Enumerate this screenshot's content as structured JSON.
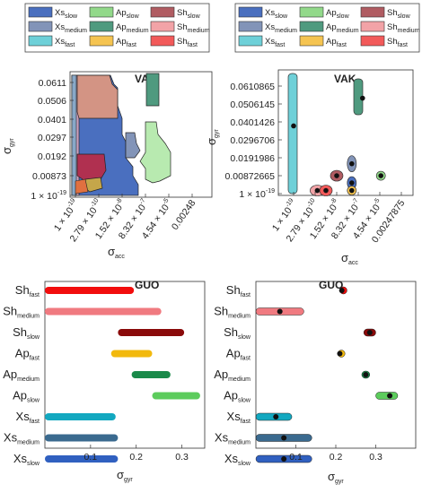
{
  "chart_data": [
    {
      "id": "vak_region",
      "type": "area",
      "title": "VAK",
      "xlabel_main": "σ",
      "xlabel_sub": "acc",
      "ylabel_main": "σ",
      "ylabel_sub": "gyr",
      "x_ticks": [
        "1 × 10^-19",
        "2.79 × 10^-10",
        "1.52 × 10^-8",
        "8.32 × 10^-7",
        "4.54 × 10^-5",
        "0.00248"
      ],
      "y_ticks": [
        "1 × 10^-19",
        "0.00873",
        "0.0192",
        "0.0297",
        "0.0401",
        "0.0506",
        "0.0611"
      ],
      "grid": false,
      "legend_position": "top"
    },
    {
      "id": "vak_points",
      "type": "scatter",
      "title": "VAK",
      "xlabel_main": "σ",
      "xlabel_sub": "acc",
      "ylabel_main": "σ",
      "ylabel_sub": "gyr",
      "x_ticks": [
        "1 × 10^-19",
        "2.79 × 10^-10",
        "1.52 × 10^-8",
        "8.32 × 10^-7",
        "4.54 × 10^-5",
        "0.00247875"
      ],
      "y_ticks": [
        "1 × 10^-19",
        "0.00872665",
        "0.0191986",
        "0.0296706",
        "0.0401426",
        "0.0506145",
        "0.0610865"
      ],
      "grid": false,
      "legend_position": "top",
      "points": [
        {
          "series": "Xs_fast",
          "x_tick_index": 0.0,
          "y": 0.0378
        },
        {
          "series": "Sh_medium",
          "x_tick_index": 1.1,
          "y": 0.0015
        },
        {
          "series": "Sh_fast",
          "x_tick_index": 1.5,
          "y": 0.0015
        },
        {
          "series": "Sh_slow",
          "x_tick_index": 2.0,
          "y": 0.0087
        },
        {
          "series": "Xs_medium",
          "x_tick_index": 2.7,
          "y": 0.0157
        },
        {
          "series": "Xs_slow",
          "x_tick_index": 2.7,
          "y": 0.0052
        },
        {
          "series": "Ap_fast",
          "x_tick_index": 2.7,
          "y": 0.0015
        },
        {
          "series": "Ap_medium",
          "x_tick_index": 3.2,
          "y": 0.054
        },
        {
          "series": "Ap_slow",
          "x_tick_index": 4.05,
          "y": 0.0087
        }
      ]
    },
    {
      "id": "guo_range",
      "type": "bar",
      "title": "GUO",
      "xlabel_main": "σ",
      "xlabel_sub": "gyr",
      "x_ticks": [
        0.1,
        0.2,
        0.3
      ],
      "xlim": [
        0,
        0.35
      ],
      "grid": false,
      "categories": [
        "Sh_fast",
        "Sh_medium",
        "Sh_slow",
        "Ap_fast",
        "Ap_medium",
        "Ap_slow",
        "Xs_fast",
        "Xs_medium",
        "Xs_slow"
      ],
      "ranges": [
        [
          0.0,
          0.195
        ],
        [
          0.0,
          0.255
        ],
        [
          0.16,
          0.305
        ],
        [
          0.145,
          0.235
        ],
        [
          0.19,
          0.275
        ],
        [
          0.235,
          0.34
        ],
        [
          0.0,
          0.155
        ],
        [
          0.0,
          0.16
        ],
        [
          0.0,
          0.16
        ]
      ]
    },
    {
      "id": "guo_points",
      "type": "bar",
      "title": "GUO",
      "xlabel_main": "σ",
      "xlabel_sub": "gyr",
      "x_ticks": [
        0.1,
        0.2,
        0.3
      ],
      "xlim": [
        0,
        0.4
      ],
      "grid": false,
      "categories": [
        "Sh_fast",
        "Sh_medium",
        "Sh_slow",
        "Ap_fast",
        "Ap_medium",
        "Ap_slow",
        "Xs_fast",
        "Xs_medium",
        "Xs_slow"
      ],
      "ranges": [
        [
          0.21,
          0.225
        ],
        [
          0.0,
          0.12
        ],
        [
          0.27,
          0.3
        ],
        [
          0.205,
          0.215
        ],
        [
          0.265,
          0.285
        ],
        [
          0.3,
          0.355
        ],
        [
          0.0,
          0.09
        ],
        [
          0.0,
          0.14
        ],
        [
          0.0,
          0.14
        ]
      ],
      "values": [
        0.215,
        0.06,
        0.285,
        0.21,
        0.275,
        0.335,
        0.05,
        0.07,
        0.07
      ]
    }
  ],
  "legend": [
    {
      "key": "Xs_slow",
      "main": "Xs",
      "sub": "slow",
      "color": "#4a6fbf"
    },
    {
      "key": "Ap_slow",
      "main": "Ap",
      "sub": "slow",
      "color": "#92d98a"
    },
    {
      "key": "Sh_slow",
      "main": "Sh",
      "sub": "slow",
      "color": "#b05c62"
    },
    {
      "key": "Xs_medium",
      "main": "Xs",
      "sub": "medium",
      "color": "#8294b8"
    },
    {
      "key": "Ap_medium",
      "main": "Ap",
      "sub": "medium",
      "color": "#4f9a7f"
    },
    {
      "key": "Sh_medium",
      "main": "Sh",
      "sub": "medium",
      "color": "#f2a3a7"
    },
    {
      "key": "Xs_fast",
      "main": "Xs",
      "sub": "fast",
      "color": "#6ed0d8"
    },
    {
      "key": "Ap_fast",
      "main": "Ap",
      "sub": "fast",
      "color": "#f5c451"
    },
    {
      "key": "Sh_fast",
      "main": "Sh",
      "sub": "fast",
      "color": "#f25a5a"
    }
  ],
  "bar_colors": {
    "Sh_fast": "#f20d0d",
    "Sh_medium": "#f07a80",
    "Sh_slow": "#8a0a0a",
    "Ap_fast": "#f2b90d",
    "Ap_medium": "#1a8a4a",
    "Ap_slow": "#5ccc5c",
    "Xs_fast": "#13a8c0",
    "Xs_medium": "#3a6a8f",
    "Xs_slow": "#3060c0"
  }
}
